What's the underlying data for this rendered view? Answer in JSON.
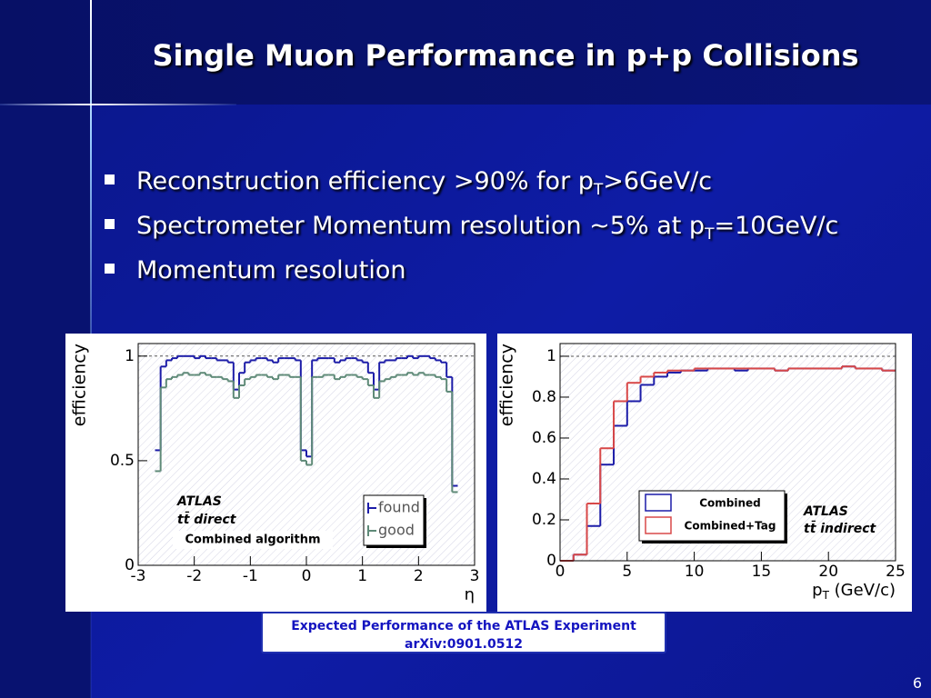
{
  "title": "Single Muon Performance in p+p Collisions",
  "bullets": [
    {
      "parts": [
        {
          "text": "Reconstruction efficiency >90% for p"
        },
        {
          "text": "T",
          "sub": true
        },
        {
          "text": ">6GeV/c"
        }
      ]
    },
    {
      "parts": [
        {
          "text": "Spectrometer Momentum resolution ~5% at p"
        },
        {
          "text": "T",
          "sub": true
        },
        {
          "text": "=10GeV/c"
        }
      ]
    },
    {
      "parts": [
        {
          "text": "Momentum resolution"
        }
      ]
    }
  ],
  "chart_data": [
    {
      "type": "histogram",
      "y_label": "efficiency",
      "x_label": [
        {
          "text": "η"
        }
      ],
      "bins": [
        -2.7,
        -2.6,
        -2.5,
        -2.4,
        -2.3,
        -2.2,
        -2.1,
        -2.0,
        -1.9,
        -1.8,
        -1.7,
        -1.6,
        -1.5,
        -1.4,
        -1.3,
        -1.2,
        -1.1,
        -1.0,
        -0.9,
        -0.8,
        -0.7,
        -0.6,
        -0.5,
        -0.4,
        -0.3,
        -0.2,
        -0.1,
        0,
        0.1,
        0.2,
        0.3,
        0.4,
        0.5,
        0.6,
        0.7,
        0.8,
        0.9,
        1.0,
        1.1,
        1.2,
        1.3,
        1.4,
        1.5,
        1.6,
        1.7,
        1.8,
        1.9,
        2.0,
        2.1,
        2.2,
        2.3,
        2.4,
        2.5,
        2.6,
        2.7
      ],
      "series": [
        {
          "name": "found",
          "color": "#1c1ca8",
          "values": [
            0.55,
            0.95,
            0.98,
            0.99,
            1.0,
            1.0,
            1.0,
            0.99,
            1.0,
            0.99,
            0.99,
            0.98,
            0.98,
            0.97,
            0.84,
            0.92,
            0.97,
            0.98,
            0.99,
            0.99,
            0.98,
            0.97,
            0.99,
            0.99,
            0.99,
            0.98,
            0.55,
            0.52,
            0.98,
            0.99,
            0.99,
            0.99,
            0.97,
            0.98,
            0.99,
            0.99,
            0.98,
            0.97,
            0.92,
            0.84,
            0.97,
            0.98,
            0.98,
            0.99,
            0.99,
            1.0,
            0.99,
            1.0,
            1.0,
            0.99,
            0.98,
            0.97,
            0.9,
            0.38
          ]
        },
        {
          "name": "good",
          "color": "#5f8a78",
          "values": [
            0.45,
            0.85,
            0.89,
            0.9,
            0.91,
            0.92,
            0.91,
            0.91,
            0.92,
            0.91,
            0.9,
            0.9,
            0.89,
            0.88,
            0.8,
            0.86,
            0.89,
            0.9,
            0.91,
            0.91,
            0.9,
            0.89,
            0.91,
            0.91,
            0.9,
            0.9,
            0.5,
            0.48,
            0.9,
            0.9,
            0.91,
            0.91,
            0.89,
            0.9,
            0.91,
            0.91,
            0.9,
            0.89,
            0.86,
            0.8,
            0.88,
            0.89,
            0.9,
            0.91,
            0.91,
            0.92,
            0.91,
            0.92,
            0.91,
            0.91,
            0.9,
            0.89,
            0.83,
            0.35
          ]
        }
      ],
      "xlim": [
        -3,
        3
      ],
      "ylim": [
        0,
        1.06
      ],
      "xticks": [
        -3,
        -2,
        -1,
        0,
        1,
        2,
        3
      ],
      "yticks": [
        0,
        0.5,
        1
      ],
      "reference_line": 1,
      "annotations": [
        "ATLAS",
        "tt̄ direct",
        "Combined algorithm"
      ]
    },
    {
      "type": "histogram",
      "y_label": "efficiency",
      "x_label": [
        {
          "text": "p"
        },
        {
          "text": "T",
          "sub": true
        },
        {
          "text": " (GeV/c)"
        }
      ],
      "bins": [
        0,
        1,
        2,
        3,
        4,
        5,
        6,
        7,
        8,
        9,
        10,
        11,
        12,
        13,
        14,
        15,
        16,
        17,
        18,
        19,
        20,
        21,
        22,
        23,
        24,
        25
      ],
      "series": [
        {
          "name": "Combined",
          "color": "#1c1ca8",
          "values": [
            0,
            0.03,
            0.17,
            0.47,
            0.66,
            0.78,
            0.86,
            0.9,
            0.92,
            0.93,
            0.93,
            0.94,
            0.94,
            0.93,
            0.94,
            0.94,
            0.93,
            0.94,
            0.94,
            0.94,
            0.94,
            0.95,
            0.94,
            0.94,
            0.93
          ]
        },
        {
          "name": "Combined+Tag",
          "color": "#d84848",
          "values": [
            0,
            0.03,
            0.28,
            0.55,
            0.78,
            0.87,
            0.9,
            0.92,
            0.93,
            0.93,
            0.94,
            0.94,
            0.94,
            0.94,
            0.94,
            0.94,
            0.93,
            0.94,
            0.94,
            0.94,
            0.94,
            0.95,
            0.94,
            0.94,
            0.93
          ]
        }
      ],
      "xlim": [
        0,
        25
      ],
      "ylim": [
        0,
        1.062
      ],
      "xticks": [
        0,
        5,
        10,
        15,
        20,
        25
      ],
      "yticks": [
        0,
        0.2,
        0.4,
        0.6,
        0.8,
        1
      ],
      "reference_line": 1,
      "annotations": [
        "ATLAS",
        "tt̄ indirect"
      ]
    }
  ],
  "citation": [
    "Expected Performance of the ATLAS Experiment",
    "arXiv:0901.0512"
  ],
  "page_number": "6"
}
